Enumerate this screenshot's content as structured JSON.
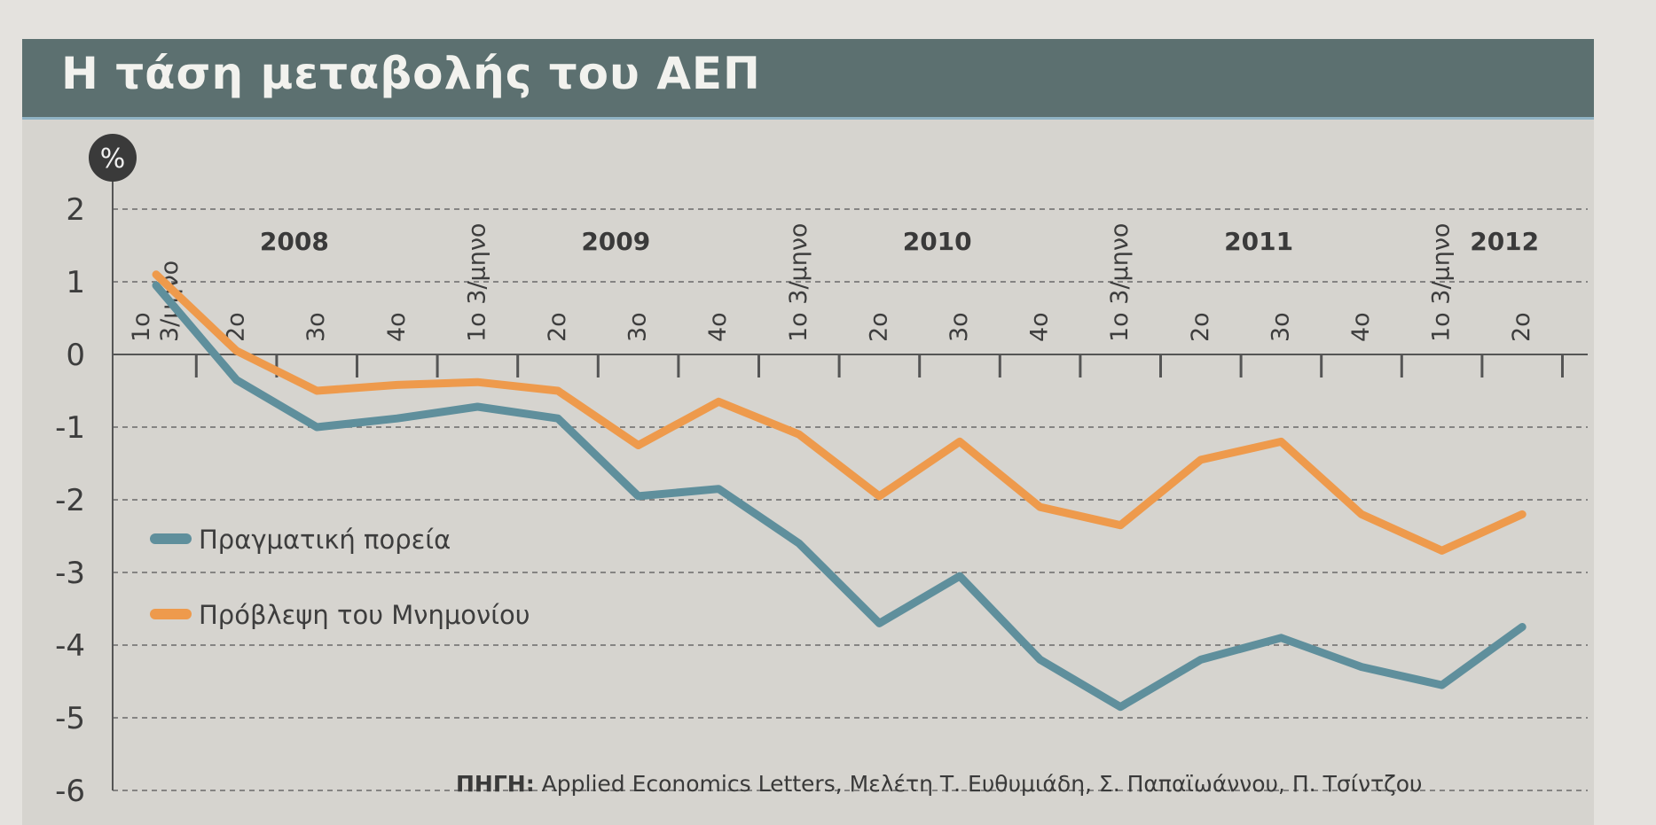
{
  "title": "Η τάση μεταβολής του ΑΕΠ",
  "unit_badge": "%",
  "source": {
    "label": "ΠΗΓΗ:",
    "text": "Applied Economics Letters, Μελέτη Τ. Ευθυμιάδη, Σ. Παπαϊωάννου, Π. Τσίντζου"
  },
  "colors": {
    "title_bar": "#5c7070",
    "panel": "#d6d4cf",
    "actual": "#5f8f9c",
    "forecast": "#ee9a4c",
    "text": "#3d3d3d"
  },
  "chart_data": {
    "type": "line",
    "title": "Η τάση μεταβολής του ΑΕΠ",
    "xlabel": "",
    "ylabel": "%",
    "ylim": [
      -6,
      2
    ],
    "yticks": [
      2,
      1,
      0,
      -1,
      -2,
      -3,
      -4,
      -5,
      -6
    ],
    "grid": true,
    "legend_position": "left-middle",
    "years": [
      "2008",
      "2009",
      "2010",
      "2011",
      "2012"
    ],
    "categories": [
      "1ο 3/μηνο 2008",
      "2ο 2008",
      "3ο 2008",
      "4ο 2008",
      "1ο 3/μηνο 2009",
      "2ο 2009",
      "3ο 2009",
      "4ο 2009",
      "1ο 3/μηνο 2010",
      "2ο 2010",
      "3ο 2010",
      "4ο 2010",
      "1ο 3/μηνο 2011",
      "2ο 2011",
      "3ο 2011",
      "4ο 2011",
      "1ο 3/μηνο 2012",
      "2ο 2012"
    ],
    "tick_labels": [
      "1ο|3/μηνο",
      "2ο",
      "3ο",
      "4ο",
      "1ο 3/μηνο",
      "2ο",
      "3ο",
      "4ο",
      "1ο 3/μηνο",
      "2ο",
      "3ο",
      "4ο",
      "1ο 3/μηνο",
      "2ο",
      "3ο",
      "4ο",
      "1ο 3/μηνο",
      "2ο"
    ],
    "series": [
      {
        "name": "Πραγματική πορεία",
        "color": "#5f8f9c",
        "values": [
          0.95,
          -0.35,
          -1.0,
          -0.88,
          -0.72,
          -0.88,
          -1.95,
          -1.85,
          -2.6,
          -3.7,
          -3.05,
          -4.2,
          -4.85,
          -4.2,
          -3.9,
          -4.3,
          -4.55,
          -3.75
        ]
      },
      {
        "name": "Πρόβλεψη του Μνημονίου",
        "color": "#ee9a4c",
        "values": [
          1.1,
          0.05,
          -0.5,
          -0.42,
          -0.38,
          -0.5,
          -1.25,
          -0.65,
          -1.1,
          -1.95,
          -1.2,
          -2.1,
          -2.35,
          -1.45,
          -1.2,
          -2.2,
          -2.7,
          -2.2
        ]
      }
    ]
  }
}
